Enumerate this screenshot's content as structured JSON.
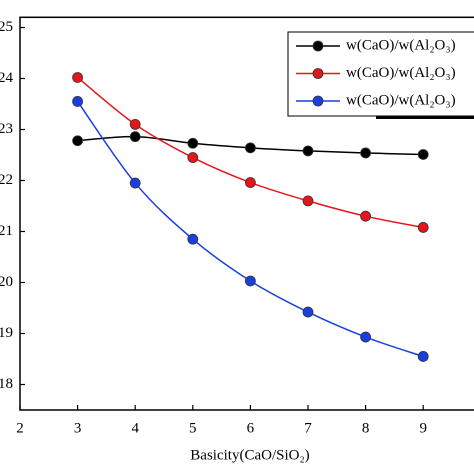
{
  "chart_data": {
    "type": "line",
    "x_label": "Basicity(CaO/SiO₂)",
    "x": [
      3,
      4,
      5,
      6,
      7,
      8,
      9
    ],
    "xlim": [
      2,
      10
    ],
    "xticks": [
      2,
      3,
      4,
      5,
      6,
      7,
      8,
      9
    ],
    "ylim": [
      17.5,
      25.2
    ],
    "yticks": [
      18,
      19,
      20,
      21,
      22,
      23,
      24,
      25
    ],
    "legend": "upper right",
    "series": [
      {
        "name": "w(CaO)/w(Al₂O₃)",
        "color": "#000000",
        "values": [
          22.78,
          22.86,
          22.73,
          22.64,
          22.58,
          22.54,
          22.51
        ]
      },
      {
        "name": "w(CaO)/w(Al₂O₃)",
        "color": "#e8141c",
        "values": [
          24.02,
          23.1,
          22.45,
          21.96,
          21.6,
          21.3,
          21.08
        ]
      },
      {
        "name": "w(CaO)/w(Al₂O₃)",
        "color": "#1a3fe0",
        "values": [
          23.55,
          21.95,
          20.85,
          20.03,
          19.42,
          18.93,
          18.55
        ]
      }
    ]
  }
}
